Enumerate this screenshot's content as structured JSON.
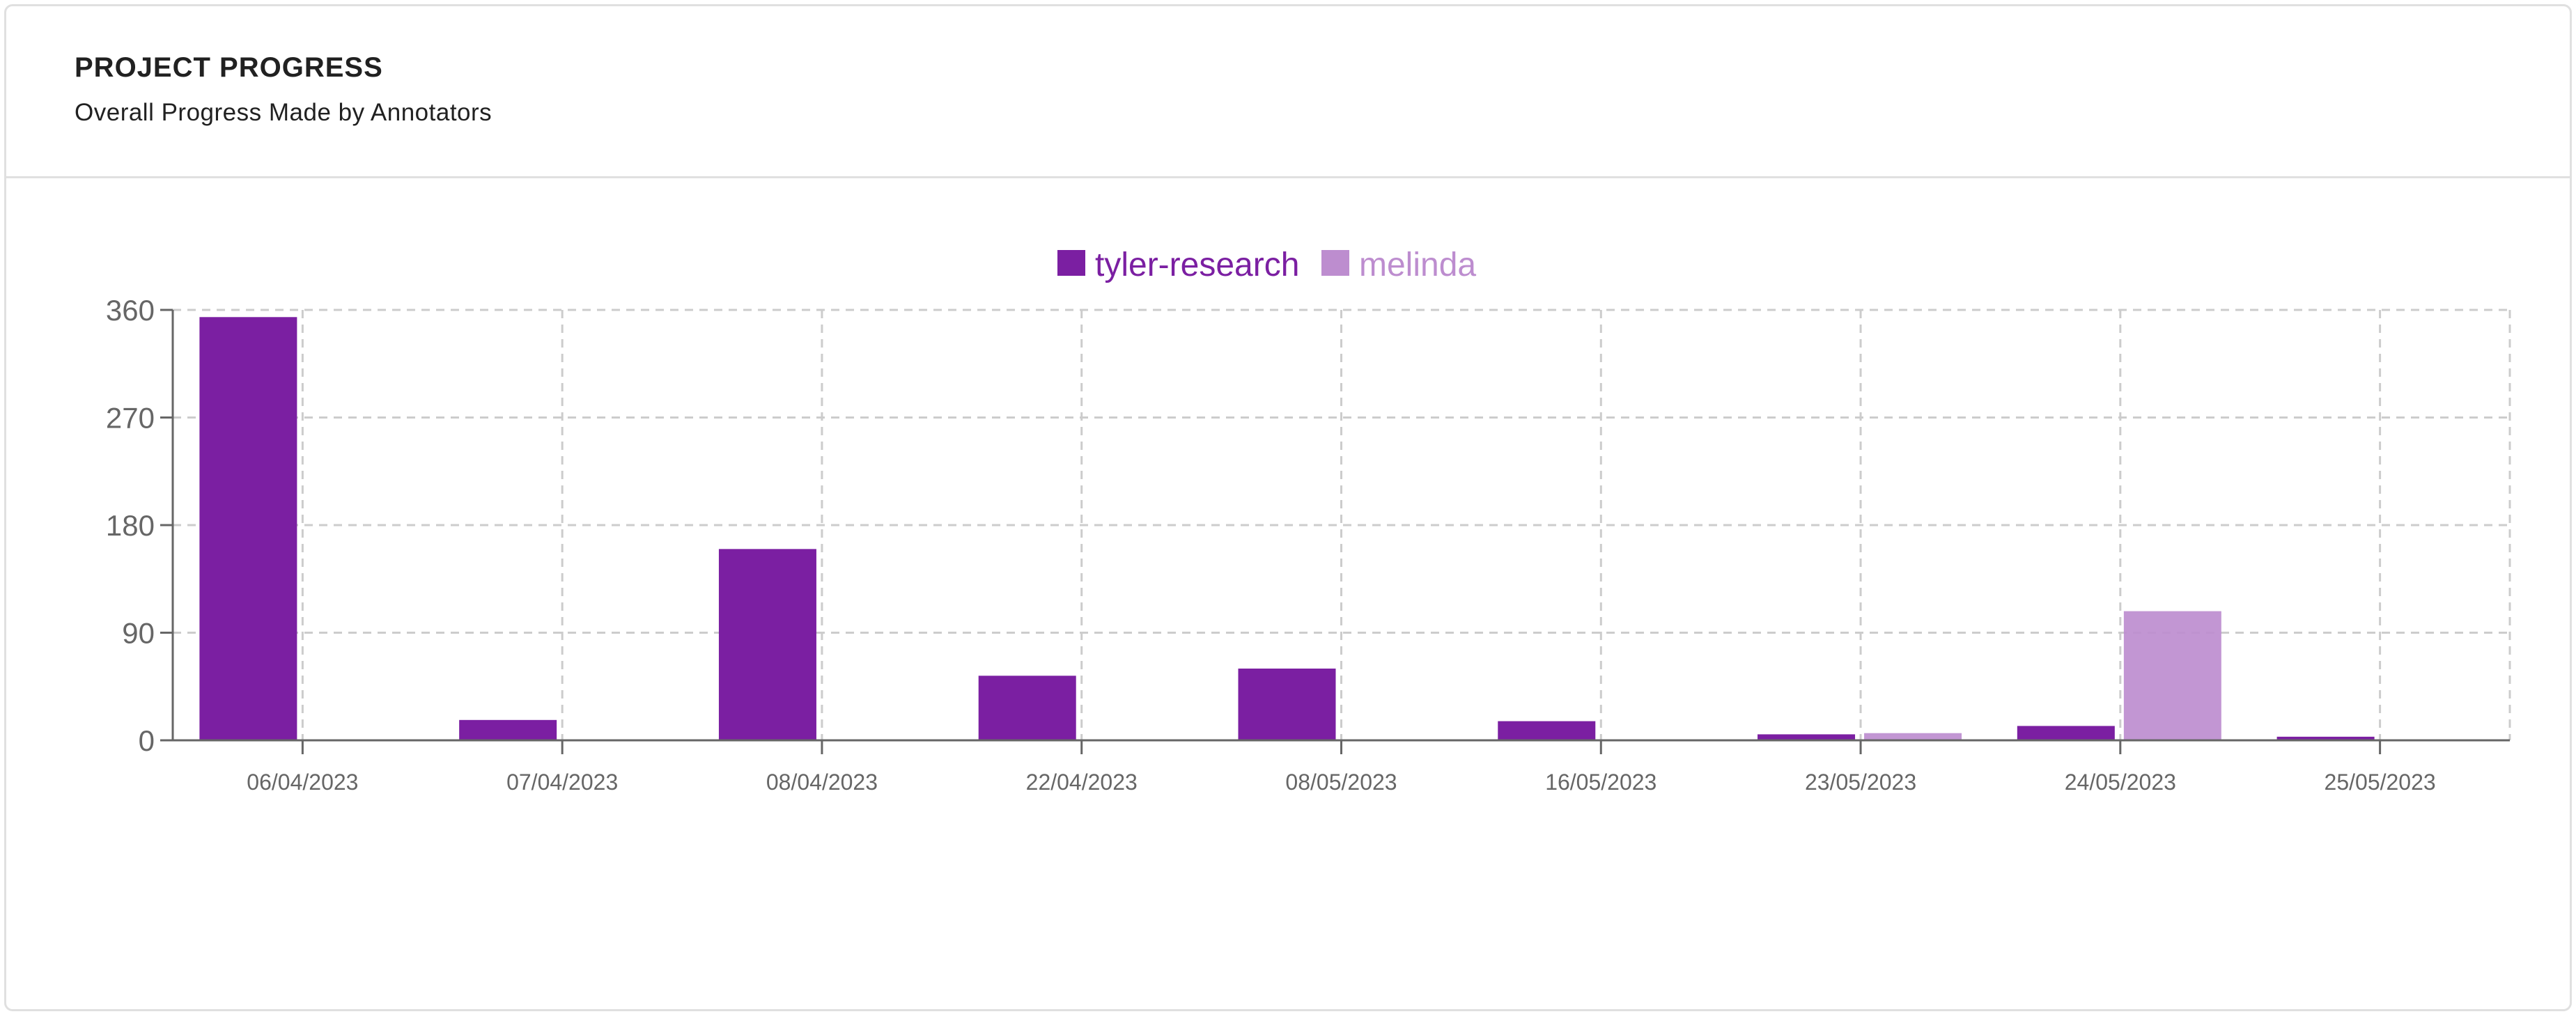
{
  "header": {
    "title": "PROJECT PROGRESS",
    "subtitle": "Overall Progress Made by Annotators"
  },
  "legend": [
    {
      "label": "tyler-research",
      "color": "#7B1FA2"
    },
    {
      "label": "melinda",
      "color": "#BD8DCF"
    }
  ],
  "chart_data": {
    "type": "bar",
    "title": "",
    "xlabel": "",
    "ylabel": "",
    "categories": [
      "06/04/2023",
      "07/04/2023",
      "08/04/2023",
      "22/04/2023",
      "08/05/2023",
      "16/05/2023",
      "23/05/2023",
      "24/05/2023",
      "25/05/2023"
    ],
    "series": [
      {
        "name": "tyler-research",
        "color": "#7B1FA2",
        "values": [
          354,
          17,
          160,
          54,
          60,
          16,
          5,
          12,
          3
        ]
      },
      {
        "name": "melinda",
        "color": "#BD8DCF",
        "values": [
          0,
          0,
          0,
          0,
          0,
          0,
          6,
          108,
          0
        ]
      }
    ],
    "yticks": [
      0,
      90,
      180,
      270,
      360
    ],
    "ylim": [
      0,
      360
    ],
    "grid": true,
    "legend_position": "top-center"
  }
}
